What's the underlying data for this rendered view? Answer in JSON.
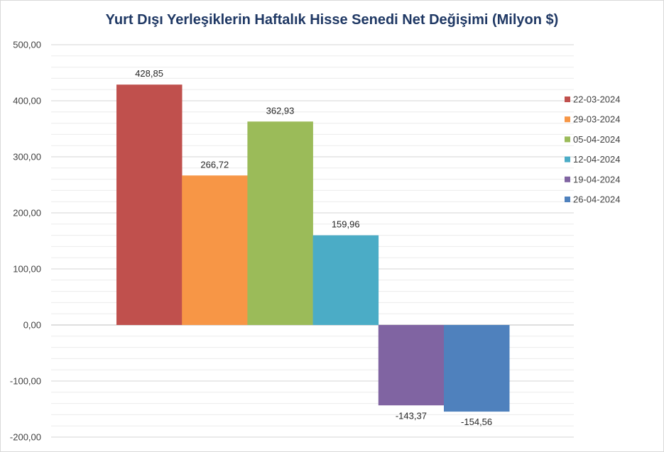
{
  "chart_data": {
    "type": "bar",
    "title": "Yurt Dışı Yerleşiklerin Haftalık Hisse Senedi Net Değişimi (Milyon $)",
    "ylim": [
      -200,
      500
    ],
    "y_ticks": [
      "500,00",
      "400,00",
      "300,00",
      "200,00",
      "100,00",
      "0,00",
      "-100,00",
      "-200,00"
    ],
    "y_tick_values": [
      500,
      400,
      300,
      200,
      100,
      0,
      -100,
      -200
    ],
    "minor_grid_step": 20,
    "grid": true,
    "legend_position": "right",
    "series": [
      {
        "name": "22-03-2024",
        "value": 428.85,
        "label": "428,85",
        "color": "#c0504d"
      },
      {
        "name": "29-03-2024",
        "value": 266.72,
        "label": "266,72",
        "color": "#f79646"
      },
      {
        "name": "05-04-2024",
        "value": 362.93,
        "label": "362,93",
        "color": "#9bbb59"
      },
      {
        "name": "12-04-2024",
        "value": 159.96,
        "label": "159,96",
        "color": "#4bacc6"
      },
      {
        "name": "19-04-2024",
        "value": -143.37,
        "label": "-143,37",
        "color": "#8064a2"
      },
      {
        "name": "26-04-2024",
        "value": -154.56,
        "label": "-154,56",
        "color": "#4f81bd"
      }
    ]
  }
}
